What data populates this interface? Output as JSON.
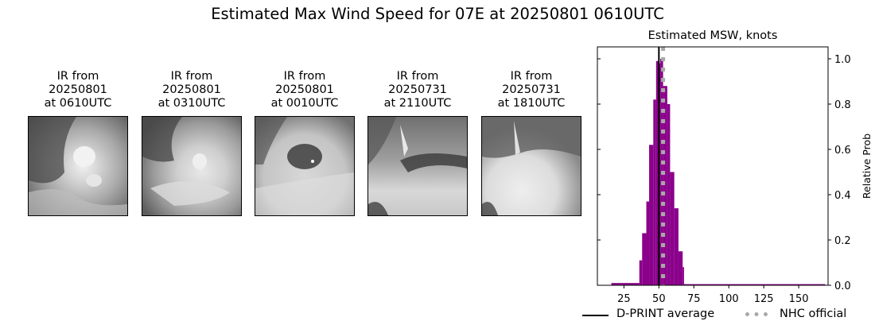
{
  "figure": {
    "title": "Estimated Max Wind Speed for 07E at 20250801 0610UTC"
  },
  "panels": [
    {
      "line1": "IR from",
      "line2": "20250801",
      "line3": "at 0610UTC",
      "image": "ir-satellite-storm-0610"
    },
    {
      "line1": "IR from",
      "line2": "20250801",
      "line3": "at 0310UTC",
      "image": "ir-satellite-storm-0310"
    },
    {
      "line1": "IR from",
      "line2": "20250801",
      "line3": "at 0010UTC",
      "image": "ir-satellite-storm-0010"
    },
    {
      "line1": "IR from",
      "line2": "20250731",
      "line3": "at 2110UTC",
      "image": "ir-satellite-storm-2110"
    },
    {
      "line1": "IR from",
      "line2": "20250731",
      "line3": "at 1810UTC",
      "image": "ir-satellite-storm-1810"
    }
  ],
  "chart_data": {
    "type": "bar",
    "title": "Estimated MSW, knots",
    "xlabel": "",
    "ylabel": "Relative Prob",
    "xlim": [
      6,
      171
    ],
    "ylim": [
      0,
      1.05
    ],
    "xticks": [
      25,
      50,
      75,
      100,
      125,
      150
    ],
    "yticks": [
      0.0,
      0.2,
      0.4,
      0.6,
      0.8,
      1.0
    ],
    "ytick_labels": [
      "0.0",
      "0.2",
      "0.4",
      "0.6",
      "0.8",
      "1.0"
    ],
    "y_axis_side": "right",
    "grid": false,
    "bar_color": "#8b008b",
    "bins": [
      {
        "x0": 16,
        "x1": 36,
        "value": 0.01
      },
      {
        "x0": 36,
        "x1": 38,
        "value": 0.11
      },
      {
        "x0": 38,
        "x1": 41,
        "value": 0.23
      },
      {
        "x0": 41,
        "x1": 43,
        "value": 0.37
      },
      {
        "x0": 43,
        "x1": 46,
        "value": 0.62
      },
      {
        "x0": 46,
        "x1": 48,
        "value": 0.82
      },
      {
        "x0": 48,
        "x1": 50,
        "value": 0.99
      },
      {
        "x0": 50,
        "x1": 51,
        "value": 0.98
      },
      {
        "x0": 51,
        "x1": 53,
        "value": 1.0
      },
      {
        "x0": 53,
        "x1": 56,
        "value": 0.88
      },
      {
        "x0": 56,
        "x1": 58,
        "value": 0.8
      },
      {
        "x0": 58,
        "x1": 61,
        "value": 0.5
      },
      {
        "x0": 61,
        "x1": 64,
        "value": 0.34
      },
      {
        "x0": 64,
        "x1": 67,
        "value": 0.15
      },
      {
        "x0": 67,
        "x1": 68,
        "value": 0.08
      },
      {
        "x0": 68,
        "x1": 169,
        "value": 0.005
      }
    ],
    "reference_lines": [
      {
        "name": "D-PRINT average",
        "x": 50,
        "color": "#000000",
        "style": "solid"
      },
      {
        "name": "NHC official",
        "x": 53,
        "color": "#a9a9a9",
        "style": "dotted"
      }
    ],
    "legend": [
      {
        "label": "D-PRINT average",
        "style": "solid",
        "color": "#000000"
      },
      {
        "label": "NHC official",
        "style": "dotted",
        "color": "#a9a9a9"
      }
    ],
    "legend_position": "below"
  }
}
